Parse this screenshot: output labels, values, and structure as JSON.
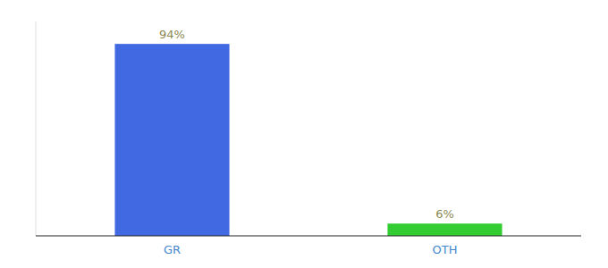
{
  "chart_data": {
    "type": "bar",
    "categories": [
      "GR",
      "OTH"
    ],
    "values": [
      94,
      6
    ],
    "value_labels": [
      "94%",
      "6%"
    ],
    "colors": [
      "#4169e1",
      "#33cc33"
    ],
    "ylim": [
      0,
      105
    ],
    "data_labels": true,
    "tick_labels": "x"
  }
}
